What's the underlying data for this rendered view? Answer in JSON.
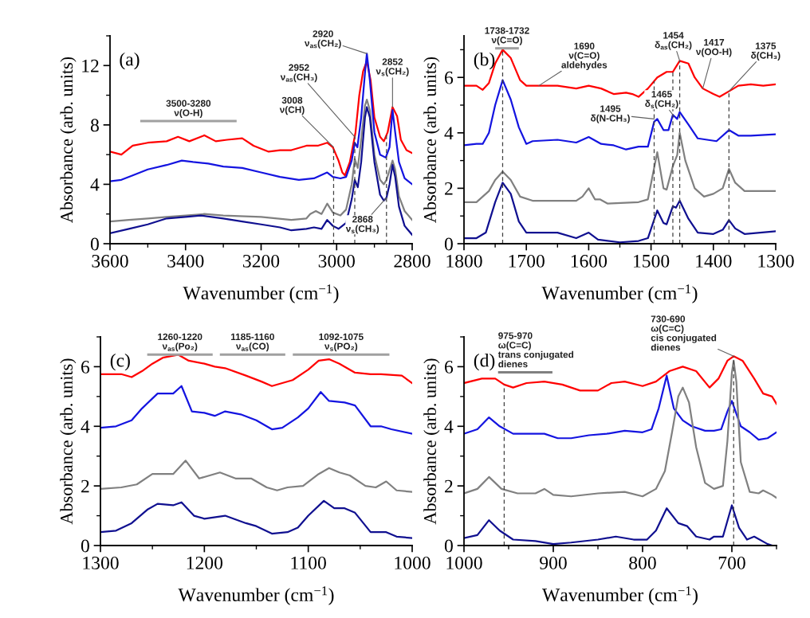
{
  "chart_data": [
    {
      "type": "line",
      "title": "(a)",
      "xlabel": "Wavenumber (cm$^{−1}$)",
      "ylabel": "Absorbance (arb. units)",
      "xlim": [
        3600,
        2800
      ],
      "ylim": [
        0,
        14
      ],
      "xticks": [
        3600,
        {
          "value": 3500,
          "label": null
        },
        3400,
        {
          "value": 3300,
          "label": null
        },
        3200,
        {
          "value": 3100,
          "label": null
        },
        3000,
        {
          "value": 2900,
          "label": null
        },
        2800
      ],
      "yticks": [
        0,
        {
          "value": 2,
          "label": null
        },
        4,
        {
          "value": 6,
          "label": null
        },
        8,
        {
          "value": 10,
          "label": null
        },
        12,
        {
          "value": 14,
          "label": null
        }
      ],
      "series": [
        {
          "color": "#ff0000",
          "x": [
            3600,
            3570,
            3540,
            3500,
            3450,
            3420,
            3390,
            3350,
            3320,
            3290,
            3250,
            3220,
            3180,
            3150,
            3120,
            3080,
            3050,
            3025,
            3010,
            2995,
            2985,
            2978,
            2965,
            2950,
            2940,
            2930,
            2920,
            2910,
            2900,
            2885,
            2875,
            2865,
            2852,
            2840,
            2830,
            2815,
            2800
          ],
          "values": [
            6.2,
            6.0,
            6.6,
            6.8,
            6.9,
            7.2,
            6.9,
            7.3,
            6.9,
            7.0,
            7.1,
            6.6,
            6.2,
            6.3,
            6.3,
            6.6,
            6.6,
            6.8,
            6.5,
            5.6,
            4.8,
            4.6,
            5.5,
            7.5,
            10.0,
            11.6,
            12.3,
            11.0,
            8.5,
            7.2,
            6.9,
            7.5,
            9.2,
            8.6,
            7.0,
            6.3,
            6.1
          ]
        },
        {
          "color": "#1414e0",
          "x": [
            3600,
            3570,
            3540,
            3500,
            3450,
            3410,
            3380,
            3340,
            3300,
            3250,
            3200,
            3150,
            3100,
            3060,
            3025,
            3010,
            2990,
            2975,
            2960,
            2952,
            2945,
            2935,
            2925,
            2920,
            2912,
            2900,
            2885,
            2870,
            2860,
            2852,
            2845,
            2835,
            2820,
            2800
          ],
          "values": [
            4.2,
            4.3,
            4.6,
            5.0,
            5.3,
            5.6,
            5.5,
            5.4,
            5.2,
            5.1,
            4.8,
            4.5,
            4.3,
            4.4,
            4.8,
            4.5,
            4.4,
            4.5,
            5.6,
            6.8,
            6.5,
            8.5,
            11.5,
            12.8,
            11.0,
            7.5,
            6.0,
            5.8,
            6.5,
            9.0,
            7.5,
            5.5,
            4.4,
            4.0
          ]
        },
        {
          "color": "#808080",
          "x": [
            3600,
            3550,
            3500,
            3450,
            3400,
            3350,
            3300,
            3200,
            3120,
            3080,
            3070,
            3055,
            3040,
            3025,
            3010,
            2990,
            2975,
            2960,
            2952,
            2944,
            2935,
            2925,
            2920,
            2912,
            2900,
            2885,
            2875,
            2868,
            2852,
            2845,
            2835,
            2820,
            2800
          ],
          "values": [
            1.5,
            1.6,
            1.7,
            1.8,
            1.9,
            2.0,
            1.9,
            1.8,
            1.6,
            1.7,
            2.0,
            2.2,
            2.0,
            2.7,
            2.1,
            1.9,
            2.3,
            4.0,
            5.7,
            5.1,
            7.0,
            9.3,
            9.7,
            9.0,
            6.0,
            4.3,
            4.0,
            4.3,
            5.6,
            5.0,
            3.2,
            2.2,
            1.6
          ]
        },
        {
          "color": "#101090",
          "x": [
            3600,
            3550,
            3500,
            3450,
            3400,
            3360,
            3300,
            3250,
            3200,
            3150,
            3120,
            3080,
            3060,
            3040,
            3025,
            3010,
            2995,
            2975,
            2960,
            2952,
            2944,
            2935,
            2925,
            2920,
            2912,
            2900,
            2885,
            2875,
            2868,
            2860,
            2852,
            2845,
            2835,
            2820,
            2800
          ],
          "values": [
            0.7,
            1.0,
            1.3,
            1.7,
            1.8,
            1.9,
            1.7,
            1.5,
            1.3,
            1.1,
            0.9,
            1.0,
            1.1,
            1.0,
            1.6,
            1.2,
            1.0,
            1.4,
            3.0,
            4.3,
            3.8,
            5.5,
            8.5,
            9.2,
            8.5,
            5.5,
            3.3,
            2.9,
            3.1,
            4.0,
            5.3,
            4.5,
            2.5,
            1.2,
            0.6
          ]
        }
      ],
      "annotations": [
        "3500-3280\nν(O-H)",
        {
          "text": "3008\nν(CH)",
          "x": 3008,
          "y": 6.5
        },
        {
          "text": "2952\nν$_{as}$(CH₃)",
          "x": 2952,
          "y": 7.2
        },
        {
          "text": "2920\nν$_{as}$(CH₂)",
          "x": 2920,
          "y": 12.8
        },
        {
          "text": "2852\nν$_{s}$(CH₂)",
          "x": 2852,
          "y": 9.2
        },
        {
          "text": "2868\nν$_{s}$(CH₃)",
          "x": 2868,
          "y": 3.1
        }
      ],
      "ref_lines": [
        {
          "axis": "x",
          "value": 3008,
          "line_style": "dashed",
          "color": "#404040"
        },
        {
          "axis": "x",
          "value": 2952,
          "line_style": "dashed",
          "color": "#404040"
        },
        {
          "axis": "x",
          "value": 2868,
          "line_style": "dashed",
          "color": "#404040"
        }
      ]
    },
    {
      "type": "line",
      "title": "(b)",
      "xlabel": "Wavenumber (cm$^{−1}$)",
      "ylabel": "Absorbance (arb. units)",
      "xlim": [
        1800,
        1300
      ],
      "ylim": [
        0,
        7.5
      ],
      "xticks": [
        1800,
        {
          "value": 1750,
          "label": null
        },
        1700,
        {
          "value": 1650,
          "label": null
        },
        1600,
        {
          "value": 1550,
          "label": null
        },
        1500,
        {
          "value": 1450,
          "label": null
        },
        1400,
        {
          "value": 1350,
          "label": null
        },
        1300
      ],
      "yticks": [
        0,
        {
          "value": 1,
          "label": null
        },
        2,
        {
          "value": 3,
          "label": null
        },
        4,
        {
          "value": 5,
          "label": null
        },
        6,
        {
          "value": 7,
          "label": null
        }
      ],
      "series": [
        {
          "color": "#ff0000",
          "x": [
            1800,
            1780,
            1770,
            1760,
            1750,
            1738,
            1725,
            1710,
            1700,
            1680,
            1650,
            1620,
            1600,
            1580,
            1560,
            1540,
            1530,
            1520,
            1505,
            1490,
            1475,
            1465,
            1454,
            1440,
            1430,
            1417,
            1400,
            1390,
            1375,
            1360,
            1340,
            1320,
            1300
          ],
          "values": [
            5.7,
            5.7,
            5.55,
            5.8,
            6.5,
            7.0,
            6.7,
            5.9,
            5.7,
            5.7,
            5.7,
            5.6,
            5.7,
            5.6,
            5.4,
            5.45,
            5.4,
            5.3,
            5.6,
            6.0,
            6.2,
            6.2,
            6.6,
            6.5,
            6.0,
            5.6,
            5.4,
            5.3,
            5.5,
            5.7,
            5.75,
            5.7,
            5.75
          ]
        },
        {
          "color": "#1414e0",
          "x": [
            1800,
            1780,
            1770,
            1760,
            1750,
            1738,
            1725,
            1712,
            1700,
            1690,
            1650,
            1620,
            1600,
            1580,
            1560,
            1540,
            1520,
            1505,
            1495,
            1490,
            1480,
            1472,
            1465,
            1458,
            1454,
            1440,
            1425,
            1410,
            1395,
            1375,
            1360,
            1340,
            1300
          ],
          "values": [
            3.55,
            3.6,
            3.6,
            4.0,
            5.0,
            5.9,
            5.2,
            4.2,
            3.6,
            3.7,
            3.75,
            3.65,
            3.85,
            3.6,
            3.55,
            3.4,
            3.5,
            3.5,
            4.4,
            4.5,
            4.1,
            4.1,
            4.65,
            4.5,
            4.75,
            4.3,
            3.8,
            3.75,
            3.7,
            4.1,
            3.9,
            3.9,
            3.95
          ]
        },
        {
          "color": "#808080",
          "x": [
            1800,
            1780,
            1760,
            1750,
            1738,
            1725,
            1710,
            1690,
            1620,
            1610,
            1600,
            1590,
            1582,
            1570,
            1520,
            1505,
            1498,
            1490,
            1480,
            1475,
            1465,
            1458,
            1454,
            1445,
            1430,
            1415,
            1400,
            1385,
            1375,
            1365,
            1350,
            1300
          ],
          "values": [
            1.5,
            1.5,
            1.9,
            2.3,
            2.6,
            2.3,
            1.7,
            1.55,
            1.55,
            1.7,
            2.0,
            1.6,
            1.6,
            1.45,
            1.5,
            1.6,
            2.4,
            3.3,
            2.0,
            1.95,
            2.8,
            3.2,
            4.0,
            3.0,
            2.0,
            1.7,
            1.8,
            2.0,
            2.7,
            2.2,
            1.9,
            1.9
          ]
        },
        {
          "color": "#101090",
          "x": [
            1800,
            1780,
            1765,
            1750,
            1738,
            1725,
            1712,
            1700,
            1650,
            1620,
            1600,
            1585,
            1550,
            1520,
            1505,
            1490,
            1480,
            1475,
            1465,
            1460,
            1454,
            1440,
            1425,
            1400,
            1385,
            1375,
            1365,
            1350,
            1300
          ],
          "values": [
            0.2,
            0.2,
            0.4,
            1.5,
            2.2,
            1.8,
            0.8,
            0.4,
            0.4,
            0.2,
            0.4,
            0.15,
            0.05,
            0.1,
            0.2,
            1.2,
            0.75,
            0.7,
            1.35,
            1.3,
            1.55,
            0.9,
            0.4,
            0.35,
            0.5,
            0.85,
            0.55,
            0.35,
            0.45
          ]
        }
      ],
      "annotations": [
        "1738-1732\nν(C=O)",
        {
          "text": "1690\nν(C=O)\naldehydes",
          "x": 1680,
          "y": 5.7
        },
        {
          "text": "1454\nδ$_{as}$(CH₂)",
          "x": 1454,
          "y": 6.6
        },
        {
          "text": "1417\nν(OO-H)",
          "x": 1417,
          "y": 5.6
        },
        {
          "text": "1375\nδ(CH₃)",
          "x": 1375,
          "y": 5.5
        },
        {
          "text": "1465\nδ$_{s}$(CH₂)",
          "x": 1465,
          "y": 4.65
        },
        {
          "text": "1495\nδ(N-CH₃)",
          "x": 1495,
          "y": 4.5
        }
      ],
      "ref_lines": [
        {
          "axis": "x",
          "value": 1738,
          "line_style": "dashed",
          "color": "#404040"
        },
        {
          "axis": "x",
          "value": 1495,
          "line_style": "dashed",
          "color": "#404040"
        },
        {
          "axis": "x",
          "value": 1465,
          "line_style": "dashed",
          "color": "#404040"
        },
        {
          "axis": "x",
          "value": 1454,
          "line_style": "dashed",
          "color": "#404040"
        },
        {
          "axis": "x",
          "value": 1375,
          "line_style": "dashed",
          "color": "#404040"
        }
      ]
    },
    {
      "type": "line",
      "title": "(c)",
      "xlabel": "Wavenumber (cm$^{−1}$)",
      "ylabel": "Absorbance (arb. units)",
      "xlim": [
        1300,
        1000
      ],
      "ylim": [
        0,
        7
      ],
      "xticks": [
        1300,
        {
          "value": 1250,
          "label": null
        },
        1200,
        {
          "value": 1150,
          "label": null
        },
        1100,
        {
          "value": 1050,
          "label": null
        },
        1000
      ],
      "yticks": [
        0,
        {
          "value": 1,
          "label": null
        },
        2,
        {
          "value": 3,
          "label": null
        },
        4,
        {
          "value": 5,
          "label": null
        },
        6,
        {
          "value": 7,
          "label": null
        }
      ],
      "series": [
        {
          "color": "#ff0000",
          "x": [
            1300,
            1280,
            1270,
            1260,
            1250,
            1240,
            1225,
            1215,
            1200,
            1190,
            1180,
            1160,
            1145,
            1135,
            1125,
            1115,
            1100,
            1090,
            1080,
            1070,
            1055,
            1040,
            1030,
            1010,
            1000
          ],
          "values": [
            5.75,
            5.75,
            5.65,
            5.85,
            6.1,
            6.3,
            6.4,
            6.2,
            6.1,
            6.0,
            5.95,
            5.7,
            5.5,
            5.35,
            5.45,
            5.55,
            5.9,
            6.2,
            6.25,
            6.1,
            5.8,
            5.75,
            5.75,
            5.7,
            5.45
          ]
        },
        {
          "color": "#1414e0",
          "x": [
            1300,
            1285,
            1270,
            1260,
            1245,
            1230,
            1222,
            1212,
            1200,
            1190,
            1180,
            1165,
            1150,
            1140,
            1135,
            1125,
            1110,
            1100,
            1088,
            1080,
            1065,
            1055,
            1040,
            1030,
            1020,
            1000
          ],
          "values": [
            3.95,
            4.0,
            4.2,
            4.6,
            5.1,
            5.1,
            5.35,
            4.5,
            4.45,
            4.35,
            4.5,
            4.4,
            4.2,
            4.0,
            3.9,
            3.95,
            4.3,
            4.6,
            5.15,
            4.85,
            4.8,
            4.7,
            4.0,
            4.0,
            3.9,
            3.75
          ]
        },
        {
          "color": "#808080",
          "x": [
            1300,
            1280,
            1265,
            1250,
            1230,
            1218,
            1205,
            1185,
            1170,
            1155,
            1140,
            1130,
            1120,
            1105,
            1090,
            1080,
            1070,
            1060,
            1045,
            1035,
            1025,
            1015,
            1000
          ],
          "values": [
            1.9,
            1.95,
            2.05,
            2.4,
            2.4,
            2.85,
            2.25,
            2.45,
            2.25,
            2.25,
            1.95,
            1.85,
            1.95,
            2.0,
            2.4,
            2.6,
            2.45,
            2.35,
            2.0,
            1.95,
            2.15,
            1.85,
            1.8
          ]
        },
        {
          "color": "#101090",
          "x": [
            1300,
            1285,
            1270,
            1255,
            1245,
            1230,
            1222,
            1210,
            1200,
            1180,
            1160,
            1150,
            1135,
            1120,
            1110,
            1100,
            1085,
            1075,
            1065,
            1055,
            1040,
            1030,
            1025,
            1015,
            1000
          ],
          "values": [
            0.45,
            0.5,
            0.75,
            1.2,
            1.4,
            1.35,
            1.45,
            1.0,
            0.9,
            1.0,
            0.75,
            0.65,
            0.4,
            0.45,
            0.6,
            1.0,
            1.5,
            1.25,
            1.25,
            1.1,
            0.45,
            0.45,
            0.45,
            0.3,
            0.25
          ]
        }
      ],
      "annotations": [
        "1260-1220\nν$_{as}$(Po₂)",
        "1185-1160\nν$_{as}$(CO)",
        "1092-1075\nν$_{s}$(PO₂)"
      ]
    },
    {
      "type": "line",
      "title": "(d)",
      "xlabel": "Wavenumber (cm$^{−1}$)",
      "ylabel": "Absorbance (arb. units)",
      "xlim": [
        1000,
        650
      ],
      "ylim": [
        0,
        7
      ],
      "xticks": [
        1000,
        {
          "value": 950,
          "label": null
        },
        900,
        {
          "value": 850,
          "label": null
        },
        800,
        {
          "value": 750,
          "label": null
        },
        700,
        {
          "value": 650,
          "label": null
        }
      ],
      "yticks": [
        0,
        {
          "value": 1,
          "label": null
        },
        2,
        {
          "value": 3,
          "label": null
        },
        4,
        {
          "value": 5,
          "label": null
        },
        6,
        {
          "value": 7,
          "label": null
        }
      ],
      "series": [
        {
          "color": "#ff0000",
          "x": [
            1000,
            980,
            965,
            955,
            945,
            930,
            910,
            890,
            870,
            850,
            835,
            820,
            800,
            785,
            770,
            755,
            740,
            725,
            715,
            705,
            698,
            688,
            675,
            665,
            655,
            650
          ],
          "values": [
            5.45,
            5.6,
            5.6,
            5.4,
            5.3,
            5.45,
            5.5,
            5.4,
            5.2,
            5.2,
            5.45,
            5.5,
            5.35,
            5.5,
            5.85,
            6.0,
            5.85,
            5.3,
            5.6,
            6.2,
            6.35,
            6.2,
            5.6,
            5.1,
            5.0,
            4.75
          ]
        },
        {
          "color": "#1414e0",
          "x": [
            1000,
            985,
            972,
            960,
            945,
            930,
            910,
            895,
            880,
            860,
            840,
            820,
            800,
            790,
            782,
            773,
            765,
            755,
            745,
            730,
            720,
            712,
            705,
            700,
            690,
            680,
            670,
            660,
            650
          ],
          "values": [
            3.75,
            3.9,
            4.3,
            4.0,
            3.75,
            3.75,
            3.75,
            3.6,
            3.6,
            3.7,
            3.75,
            3.85,
            3.8,
            3.9,
            4.6,
            5.7,
            4.6,
            4.2,
            4.0,
            3.85,
            3.85,
            3.9,
            4.5,
            4.85,
            4.0,
            3.8,
            3.55,
            3.6,
            3.8
          ]
        },
        {
          "color": "#808080",
          "x": [
            1000,
            985,
            972,
            958,
            940,
            920,
            910,
            900,
            880,
            850,
            820,
            800,
            785,
            775,
            767,
            760,
            755,
            748,
            740,
            730,
            720,
            710,
            705,
            700,
            698,
            695,
            690,
            680,
            670,
            665,
            655,
            650
          ],
          "values": [
            1.75,
            1.9,
            2.3,
            1.9,
            1.75,
            1.75,
            1.9,
            1.7,
            1.65,
            1.75,
            1.8,
            1.65,
            1.9,
            2.5,
            3.8,
            5.0,
            5.3,
            4.8,
            3.3,
            2.1,
            1.9,
            2.0,
            3.5,
            5.8,
            6.2,
            5.5,
            2.8,
            1.8,
            1.75,
            1.85,
            1.7,
            1.6
          ]
        },
        {
          "color": "#101090",
          "x": [
            1000,
            985,
            972,
            960,
            945,
            920,
            900,
            880,
            850,
            830,
            810,
            795,
            785,
            773,
            760,
            750,
            740,
            725,
            720,
            710,
            700,
            692,
            683,
            675,
            660,
            655
          ],
          "values": [
            0.25,
            0.35,
            0.85,
            0.5,
            0.2,
            0.15,
            0.05,
            0.1,
            0.2,
            0.3,
            0.2,
            0.2,
            0.5,
            1.25,
            0.75,
            0.65,
            0.3,
            0.2,
            0.3,
            0.3,
            1.35,
            0.6,
            0.2,
            0.3,
            0.05,
            0.0
          ]
        }
      ],
      "annotations": [
        "975-970\nω(C=C)\ntrans conjugated\ndienes",
        {
          "text": "730-690\nω(C=C)\ncis conjugated\ndienes",
          "x": 698,
          "y": 6.35
        }
      ],
      "ref_lines": [
        {
          "axis": "x",
          "value": 955,
          "line_style": "dashed",
          "color": "#404040"
        },
        {
          "axis": "x",
          "value": 698,
          "line_style": "dashed",
          "color": "#404040"
        }
      ]
    }
  ]
}
